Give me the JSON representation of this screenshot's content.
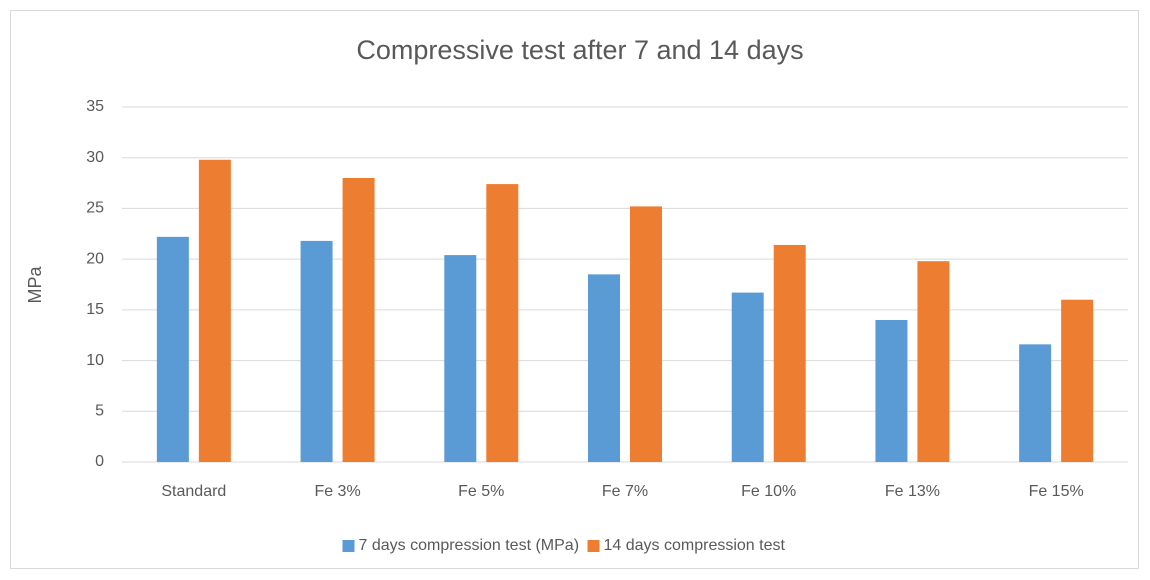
{
  "chart_data": {
    "type": "bar",
    "title": "Compressive test after 7 and 14 days",
    "y_label": "MPa",
    "categories": [
      "Standard",
      "Fe 3%",
      "Fe 5%",
      "Fe 7%",
      "Fe 10%",
      "Fe 13%",
      "Fe 15%"
    ],
    "series": [
      {
        "name": "7 days compression test (MPa)",
        "color": "#5b9bd5",
        "values": [
          22.2,
          21.8,
          20.4,
          18.5,
          16.7,
          14.0,
          11.6
        ]
      },
      {
        "name": "14 days compression test",
        "color": "#ed7d31",
        "values": [
          29.8,
          28.0,
          27.4,
          25.2,
          21.4,
          19.8,
          16.0
        ]
      }
    ],
    "ylim": [
      0,
      35
    ],
    "yticks": [
      0,
      5,
      10,
      15,
      20,
      25,
      30,
      35
    ],
    "grid": true,
    "legend": "bottom"
  }
}
